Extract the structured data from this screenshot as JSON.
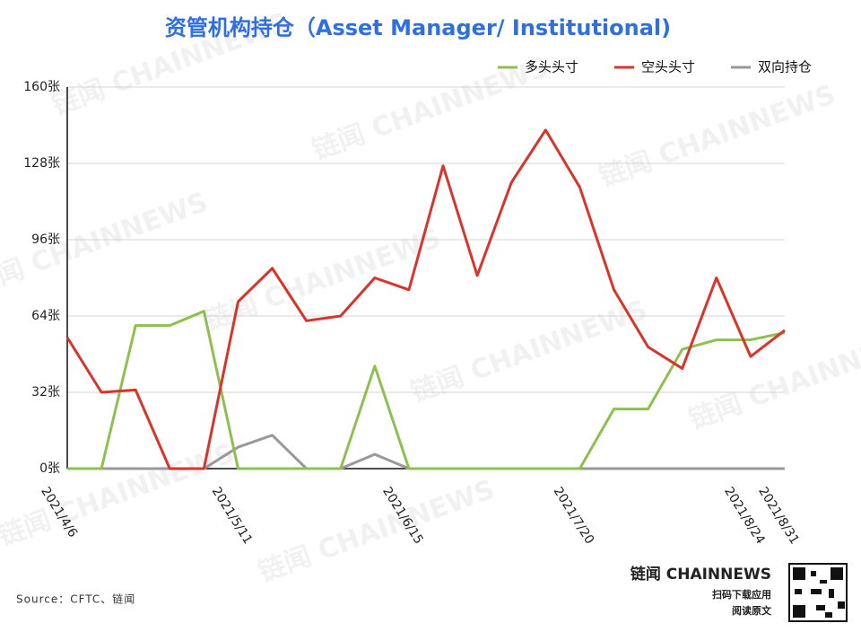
{
  "chart_data": {
    "type": "line",
    "title": "资管机构持仓（Asset Manager/ Institutional)",
    "categories": [
      "2021/4/6",
      null,
      null,
      null,
      null,
      "2021/5/11",
      null,
      null,
      null,
      null,
      "2021/6/15",
      null,
      null,
      null,
      null,
      "2021/7/20",
      null,
      null,
      null,
      null,
      "2021/8/24",
      "2021/8/31"
    ],
    "series": [
      {
        "name": "多头头寸",
        "color": "#8dc04f",
        "values": [
          0,
          0,
          60,
          60,
          66,
          0,
          0,
          0,
          0,
          43,
          0,
          0,
          0,
          0,
          0,
          0,
          25,
          25,
          50,
          54,
          54,
          57
        ]
      },
      {
        "name": "空头头寸",
        "color": "#d9342b",
        "values": [
          55,
          32,
          33,
          0,
          0,
          70,
          84,
          62,
          64,
          80,
          75,
          127,
          81,
          120,
          142,
          118,
          75,
          51,
          42,
          80,
          47,
          58
        ]
      },
      {
        "name": "双向持仓",
        "color": "#999999",
        "values": [
          0,
          0,
          0,
          0,
          0,
          9,
          14,
          0,
          0,
          6,
          0,
          0,
          0,
          0,
          0,
          0,
          0,
          0,
          0,
          0,
          0,
          0
        ]
      }
    ],
    "ylim": [
      0,
      160
    ],
    "yticks": [
      {
        "value": 0,
        "label": "0张"
      },
      {
        "value": 32,
        "label": "32张"
      },
      {
        "value": 64,
        "label": "64张"
      },
      {
        "value": 96,
        "label": "96张"
      },
      {
        "value": 128,
        "label": "128张"
      },
      {
        "value": 160,
        "label": "160张"
      }
    ],
    "grid": true,
    "legend": "top-right",
    "source": "Source：CFTC、链闻",
    "watermark": "链闻 CHAINNEWS",
    "brand": "链闻 CHAINNEWS",
    "cta": [
      "扫码下载应用",
      "阅读原文"
    ]
  }
}
